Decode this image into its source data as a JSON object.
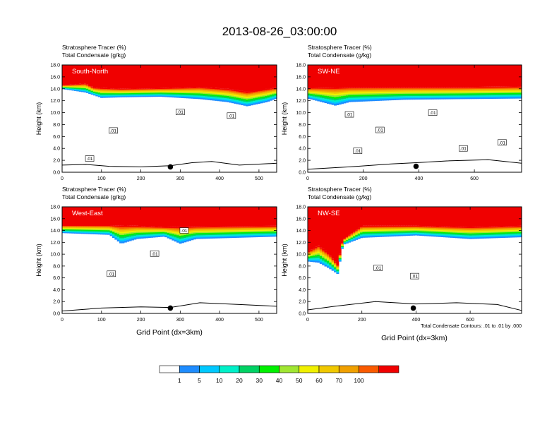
{
  "title": "2013-08-26_03:00:00",
  "panel_subtitle_1": "Stratosphere Tracer   (%)",
  "panel_subtitle_2": "Total Condensate   (g/kg)",
  "ylabel": "Height (km)",
  "xlabel": "Grid Point (dx=3km)",
  "contour_note": "Total Condensate Contours: .01 to .01 by .000",
  "contour_label": ".01",
  "colors": {
    "levels": [
      "#ffffff",
      "#1e8cff",
      "#00c8ff",
      "#00f0c8",
      "#00d264",
      "#00f000",
      "#a0e632",
      "#f0f000",
      "#f0c800",
      "#f0a000",
      "#fa5a00",
      "#f00000"
    ],
    "labels": [
      "1",
      "5",
      "10",
      "20",
      "30",
      "40",
      "50",
      "60",
      "70",
      "100"
    ]
  },
  "chart_data": [
    {
      "type": "heatmap",
      "name": "South-North",
      "xlim": [
        0,
        545
      ],
      "ylim": [
        0,
        18
      ],
      "xticks": [
        0,
        100,
        200,
        300,
        400,
        500
      ],
      "yticks": [
        0,
        2,
        4,
        6,
        8,
        10,
        12,
        14,
        16,
        18
      ],
      "ytick_labels": [
        "0.0",
        "2.0",
        "4.0",
        "6.0",
        "8.0",
        "10.0",
        "12.0",
        "14.0",
        "16.0",
        "18.0"
      ],
      "tracer_top_km": [
        [
          0,
          14.6
        ],
        [
          60,
          14.9
        ],
        [
          80,
          14.2
        ],
        [
          150,
          14.0
        ],
        [
          250,
          14.1
        ],
        [
          350,
          14.3
        ],
        [
          420,
          14.0
        ],
        [
          470,
          13.5
        ],
        [
          520,
          14.0
        ],
        [
          545,
          14.2
        ]
      ],
      "tracer_bottom_km": [
        [
          0,
          14.0
        ],
        [
          60,
          13.4
        ],
        [
          100,
          12.5
        ],
        [
          150,
          12.6
        ],
        [
          250,
          12.7
        ],
        [
          350,
          12.3
        ],
        [
          420,
          11.8
        ],
        [
          470,
          11.1
        ],
        [
          520,
          11.8
        ],
        [
          545,
          12.4
        ]
      ],
      "terrain_km": [
        [
          0,
          1.2
        ],
        [
          60,
          1.3
        ],
        [
          120,
          1.0
        ],
        [
          200,
          0.9
        ],
        [
          275,
          1.1
        ],
        [
          330,
          1.6
        ],
        [
          380,
          1.8
        ],
        [
          450,
          1.2
        ],
        [
          545,
          1.5
        ]
      ],
      "marker": {
        "x": 275,
        "y": 0.9
      },
      "contour_labels": [
        {
          "x": 70,
          "y": 2.3
        },
        {
          "x": 130,
          "y": 7.0
        },
        {
          "x": 300,
          "y": 10.1
        },
        {
          "x": 430,
          "y": 9.5
        }
      ]
    },
    {
      "type": "heatmap",
      "name": "SW-NE",
      "xlim": [
        0,
        770
      ],
      "ylim": [
        0,
        18
      ],
      "xticks": [
        0,
        200,
        400,
        600
      ],
      "yticks": [
        0,
        2,
        4,
        6,
        8,
        10,
        12,
        14,
        16,
        18
      ],
      "ytick_labels": [
        "0.0",
        "2.0",
        "4.0",
        "6.0",
        "8.0",
        "10.0",
        "12.0",
        "14.0",
        "16.0",
        "18.0"
      ],
      "tracer_top_km": [
        [
          0,
          14.2
        ],
        [
          150,
          14.3
        ],
        [
          350,
          14.3
        ],
        [
          550,
          14.3
        ],
        [
          770,
          14.4
        ]
      ],
      "tracer_bottom_km": [
        [
          0,
          12.4
        ],
        [
          100,
          11.2
        ],
        [
          150,
          11.8
        ],
        [
          350,
          12.2
        ],
        [
          550,
          12.3
        ],
        [
          770,
          12.4
        ]
      ],
      "terrain_km": [
        [
          0,
          0.5
        ],
        [
          150,
          0.9
        ],
        [
          300,
          1.4
        ],
        [
          390,
          1.6
        ],
        [
          500,
          1.9
        ],
        [
          650,
          2.1
        ],
        [
          770,
          1.5
        ]
      ],
      "marker": {
        "x": 390,
        "y": 1.0
      },
      "contour_labels": [
        {
          "x": 150,
          "y": 9.7
        },
        {
          "x": 180,
          "y": 3.6
        },
        {
          "x": 260,
          "y": 7.1
        },
        {
          "x": 450,
          "y": 10.0
        },
        {
          "x": 560,
          "y": 4.0
        },
        {
          "x": 700,
          "y": 5.0
        }
      ]
    },
    {
      "type": "heatmap",
      "name": "West-East",
      "xlim": [
        0,
        545
      ],
      "ylim": [
        0,
        18
      ],
      "xticks": [
        0,
        100,
        200,
        300,
        400,
        500
      ],
      "yticks": [
        0,
        2,
        4,
        6,
        8,
        10,
        12,
        14,
        16,
        18
      ],
      "ytick_labels": [
        "0.0",
        "2.0",
        "4.0",
        "6.0",
        "8.0",
        "10.0",
        "12.0",
        "14.0",
        "16.0",
        "18.0"
      ],
      "tracer_top_km": [
        [
          0,
          14.9
        ],
        [
          120,
          14.9
        ],
        [
          190,
          14.8
        ],
        [
          260,
          14.6
        ],
        [
          340,
          14.7
        ],
        [
          545,
          14.8
        ]
      ],
      "tracer_bottom_km": [
        [
          0,
          13.6
        ],
        [
          120,
          13.3
        ],
        [
          150,
          11.8
        ],
        [
          190,
          12.6
        ],
        [
          260,
          13.0
        ],
        [
          300,
          11.8
        ],
        [
          340,
          12.6
        ],
        [
          545,
          13.0
        ]
      ],
      "terrain_km": [
        [
          0,
          0.4
        ],
        [
          100,
          0.9
        ],
        [
          200,
          1.1
        ],
        [
          275,
          1.0
        ],
        [
          350,
          1.8
        ],
        [
          450,
          1.5
        ],
        [
          545,
          1.2
        ]
      ],
      "marker": {
        "x": 275,
        "y": 0.9
      },
      "contour_labels": [
        {
          "x": 125,
          "y": 6.7
        },
        {
          "x": 235,
          "y": 10.1
        },
        {
          "x": 310,
          "y": 14.0
        }
      ]
    },
    {
      "type": "heatmap",
      "name": "NW-SE",
      "xlim": [
        0,
        790
      ],
      "ylim": [
        0,
        18
      ],
      "xticks": [
        0,
        200,
        400,
        600
      ],
      "yticks": [
        0,
        2,
        4,
        6,
        8,
        10,
        12,
        14,
        16,
        18
      ],
      "ytick_labels": [
        "0.0",
        "2.0",
        "4.0",
        "6.0",
        "8.0",
        "10.0",
        "12.0",
        "14.0",
        "16.0",
        "18.0"
      ],
      "tracer_top_km": [
        [
          0,
          10.4
        ],
        [
          40,
          11.5
        ],
        [
          80,
          10.0
        ],
        [
          110,
          8.2
        ],
        [
          130,
          12.5
        ],
        [
          200,
          14.8
        ],
        [
          400,
          14.8
        ],
        [
          600,
          14.6
        ],
        [
          790,
          14.8
        ]
      ],
      "tracer_bottom_km": [
        [
          0,
          8.8
        ],
        [
          40,
          8.6
        ],
        [
          80,
          7.6
        ],
        [
          110,
          6.7
        ],
        [
          130,
          11.6
        ],
        [
          200,
          12.8
        ],
        [
          400,
          13.2
        ],
        [
          600,
          12.6
        ],
        [
          790,
          12.9
        ]
      ],
      "terrain_km": [
        [
          0,
          0.6
        ],
        [
          100,
          1.2
        ],
        [
          250,
          2.0
        ],
        [
          400,
          1.6
        ],
        [
          550,
          1.8
        ],
        [
          700,
          1.5
        ],
        [
          790,
          0.5
        ]
      ],
      "marker": {
        "x": 390,
        "y": 0.9
      },
      "contour_labels": [
        {
          "x": 260,
          "y": 7.7
        },
        {
          "x": 395,
          "y": 6.3
        }
      ]
    }
  ]
}
